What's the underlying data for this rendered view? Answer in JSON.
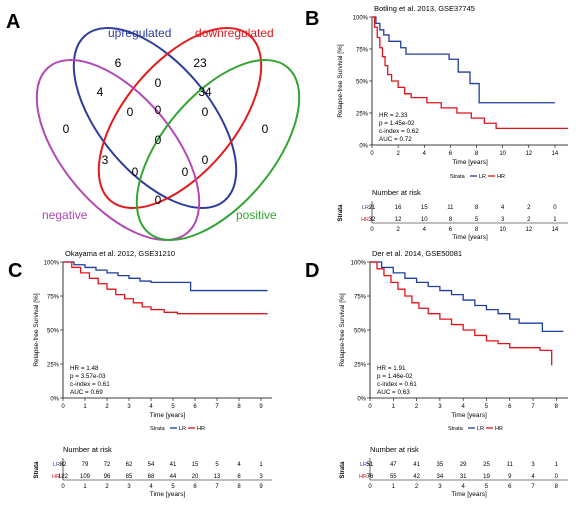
{
  "panel_labels": {
    "A": "A",
    "B": "B",
    "C": "C",
    "D": "D"
  },
  "colors": {
    "LR": "#1f3e9e",
    "HR": "#e3131b",
    "upregulated": "#2e3d9b",
    "downregulated": "#e41a1c",
    "positive": "#33a532",
    "negative": "#b249b5"
  },
  "legend_text": {
    "strata": "Strata",
    "LR": "LR",
    "HR": "HR"
  },
  "risk_text": {
    "title": "Number at risk",
    "strata_axis": "Strata",
    "time_axis": "Time [years]"
  },
  "chart_data": [
    {
      "type": "venn",
      "panel": "A",
      "sets": [
        "upregulated",
        "downregulated",
        "negative",
        "positive"
      ],
      "regions": [
        {
          "sets": [
            "upregulated"
          ],
          "count": 6
        },
        {
          "sets": [
            "downregulated"
          ],
          "count": 23
        },
        {
          "sets": [
            "negative"
          ],
          "count": 0
        },
        {
          "sets": [
            "positive"
          ],
          "count": 0
        },
        {
          "sets": [
            "upregulated",
            "downregulated"
          ],
          "count": 0
        },
        {
          "sets": [
            "downregulated",
            "positive"
          ],
          "count": 34
        },
        {
          "sets": [
            "upregulated",
            "negative"
          ],
          "count": 4
        },
        {
          "sets": [
            "upregulated",
            "positive"
          ],
          "count": 0
        },
        {
          "sets": [
            "upregulated",
            "downregulated",
            "positive"
          ],
          "count": 0
        },
        {
          "sets": [
            "negative",
            "upregulated",
            "downregulated"
          ],
          "count": 0
        },
        {
          "sets": [
            "negative",
            "downregulated"
          ],
          "count": 3
        },
        {
          "sets": [
            "negative",
            "upregulated",
            "downregulated",
            "positive"
          ],
          "count": 0
        },
        {
          "sets": [
            "negative",
            "downregulated",
            "positive"
          ],
          "count": 0
        },
        {
          "sets": [
            "negative",
            "upregulated",
            "positive"
          ],
          "count": 0
        },
        {
          "sets": [
            "upregulated",
            "downregulated",
            "positive",
            "negative"
          ],
          "count": 0
        },
        {
          "sets": [
            "negative",
            "positive"
          ],
          "count": 0
        }
      ]
    },
    {
      "type": "line",
      "panel": "B",
      "title": "Botling et al. 2013, GSE37745",
      "ylabel": "Relapse-free Survival [%]",
      "xlabel": "Time [years]",
      "ylim": [
        0,
        100
      ],
      "xlim": [
        0,
        15
      ],
      "yticks": [
        "0%",
        "25%",
        "50%",
        "75%",
        "100%"
      ],
      "xticks": [
        0,
        2,
        4,
        6,
        8,
        10,
        12,
        14
      ],
      "stats": [
        "HR = 2.33",
        "p = 1.45e-02",
        "c-index = 0.62",
        "AUC = 0.72"
      ],
      "series": [
        {
          "name": "LR",
          "x": [
            0,
            0.3,
            0.6,
            0.9,
            1.3,
            2.2,
            2.6,
            5.9,
            6.6,
            7.5,
            8.2,
            14.0
          ],
          "y": [
            100,
            95,
            90,
            86,
            81,
            76,
            71,
            67,
            57,
            48,
            33,
            33
          ]
        },
        {
          "name": "HR",
          "x": [
            0,
            0.2,
            0.4,
            0.6,
            0.8,
            1.0,
            1.2,
            1.5,
            2.0,
            2.5,
            3.0,
            4.2,
            5.3,
            6.5,
            7.6,
            8.6,
            9.5,
            15.0
          ],
          "y": [
            100,
            92,
            84,
            76,
            69,
            62,
            55,
            50,
            45,
            40,
            37,
            33,
            29,
            25,
            21,
            17,
            13,
            13
          ]
        }
      ],
      "risk_table": {
        "times": [
          0,
          2,
          4,
          6,
          8,
          10,
          12,
          14
        ],
        "rows": [
          {
            "name": "LR",
            "values": [
              21,
              16,
              15,
              11,
              8,
              4,
              2,
              0
            ]
          },
          {
            "name": "HR",
            "values": [
              32,
              12,
              10,
              8,
              5,
              3,
              2,
              1
            ]
          }
        ]
      }
    },
    {
      "type": "line",
      "panel": "C",
      "title": "Okayama et al. 2012, GSE31210",
      "ylabel": "Relapse-free Survival [%]",
      "xlabel": "Time [years]",
      "ylim": [
        0,
        100
      ],
      "xlim": [
        0,
        9.5
      ],
      "yticks": [
        "0%",
        "25%",
        "50%",
        "75%",
        "100%"
      ],
      "xticks": [
        0,
        1,
        2,
        3,
        4,
        5,
        6,
        7,
        8,
        9
      ],
      "stats": [
        "HR = 1.48",
        "p = 3.57e-03",
        "c-index = 0.61",
        "AUC = 0.69"
      ],
      "series": [
        {
          "name": "LR",
          "x": [
            0,
            0.5,
            1.0,
            1.5,
            2.0,
            2.5,
            3.0,
            3.5,
            4.0,
            5.8,
            9.3
          ],
          "y": [
            100,
            98,
            96,
            94,
            92,
            90,
            88,
            86,
            85,
            79,
            79
          ]
        },
        {
          "name": "HR",
          "x": [
            0,
            0.4,
            0.8,
            1.2,
            1.6,
            2.0,
            2.4,
            2.8,
            3.2,
            3.6,
            4.0,
            4.6,
            5.2,
            9.3
          ],
          "y": [
            100,
            96,
            92,
            88,
            84,
            80,
            76,
            73,
            70,
            67,
            65,
            63,
            62,
            62
          ]
        }
      ],
      "risk_table": {
        "times": [
          0,
          1,
          2,
          3,
          4,
          5,
          6,
          7,
          8,
          9
        ],
        "rows": [
          {
            "name": "LR",
            "values": [
              82,
              79,
              72,
              62,
              54,
              41,
              15,
              5,
              4,
              1
            ]
          },
          {
            "name": "HR",
            "values": [
              122,
              109,
              96,
              85,
              68,
              44,
              20,
              13,
              8,
              3
            ]
          }
        ]
      }
    },
    {
      "type": "line",
      "panel": "D",
      "title": "Der et al. 2014, GSE50081",
      "ylabel": "Relapse-free Survival [%]",
      "xlabel": "Time [years]",
      "ylim": [
        0,
        100
      ],
      "xlim": [
        0,
        8.5
      ],
      "yticks": [
        "0%",
        "25%",
        "50%",
        "75%",
        "100%"
      ],
      "xticks": [
        0,
        1,
        2,
        3,
        4,
        5,
        6,
        7,
        8
      ],
      "stats": [
        "HR = 1.91",
        "p = 1.46e-02",
        "c-index = 0.61",
        "AUC = 0.63"
      ],
      "series": [
        {
          "name": "LR",
          "x": [
            0,
            0.5,
            1.0,
            1.5,
            2.0,
            2.5,
            3.0,
            3.5,
            4.0,
            4.5,
            5.0,
            5.5,
            6.0,
            6.4,
            7.4,
            8.3
          ],
          "y": [
            100,
            96,
            92,
            88,
            85,
            82,
            79,
            76,
            72,
            68,
            65,
            62,
            58,
            55,
            49,
            49
          ]
        },
        {
          "name": "HR",
          "x": [
            0,
            0.3,
            0.6,
            0.9,
            1.2,
            1.5,
            1.8,
            2.1,
            2.5,
            3.0,
            3.5,
            4.0,
            4.5,
            5.0,
            5.5,
            6.0,
            7.3,
            7.8
          ],
          "y": [
            100,
            95,
            90,
            85,
            80,
            75,
            70,
            66,
            62,
            58,
            54,
            50,
            46,
            42,
            40,
            37,
            35,
            24
          ]
        }
      ],
      "risk_table": {
        "times": [
          0,
          1,
          2,
          3,
          4,
          5,
          6,
          7,
          8
        ],
        "rows": [
          {
            "name": "LR",
            "values": [
              51,
              47,
              41,
              35,
              29,
              25,
              11,
              3,
              1
            ]
          },
          {
            "name": "HR",
            "values": [
              76,
              55,
              42,
              34,
              31,
              19,
              9,
              4,
              0
            ]
          }
        ]
      }
    }
  ]
}
